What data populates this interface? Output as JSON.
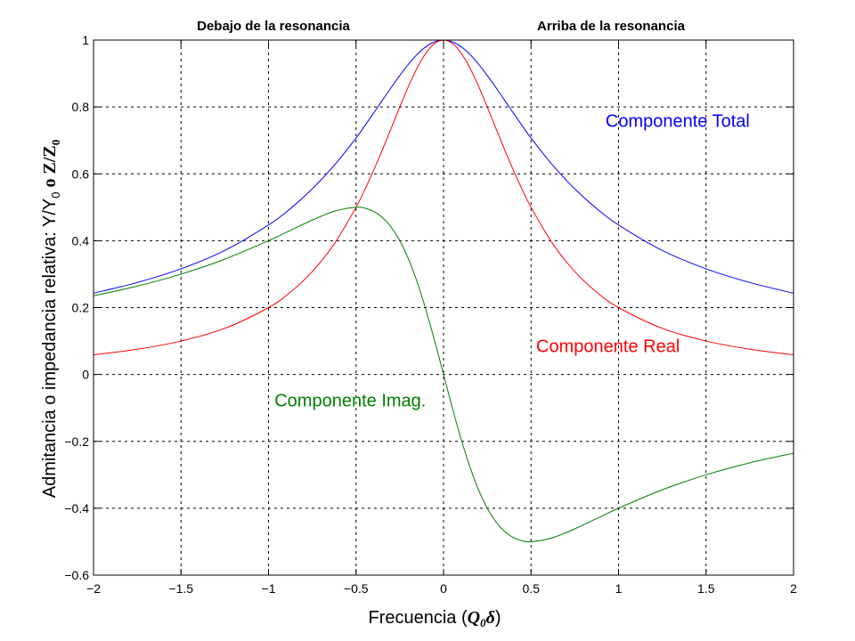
{
  "chart_data": {
    "type": "line",
    "xlim": [
      -2,
      2
    ],
    "ylim": [
      -0.6,
      1
    ],
    "xticks": [
      -2,
      -1.5,
      -1,
      -0.5,
      0,
      0.5,
      1,
      1.5,
      2
    ],
    "xtick_labels": [
      "−2",
      "−1.5",
      "−1",
      "−0.5",
      "0",
      "0.5",
      "1",
      "1.5",
      "2"
    ],
    "yticks": [
      -0.6,
      -0.4,
      -0.2,
      0,
      0.2,
      0.4,
      0.6,
      0.8,
      1
    ],
    "ytick_labels": [
      "−0.6",
      "−0.4",
      "−0.2",
      "0",
      "0.2",
      "0.4",
      "0.6",
      "0.8",
      "1"
    ],
    "grid": true,
    "grid_style": "dashed",
    "top_labels": {
      "left": "Debajo de la resonancia",
      "right": "Arriba de la resonancia"
    },
    "xlabel": {
      "prefix": "Frecuencia (",
      "symbol": "Q",
      "subscript": "0",
      "delta": "δ",
      "suffix": ")"
    },
    "ylabel": {
      "prefix": "Admitancia o impedancia relativa:  Y/Y",
      "sub1": "0",
      "middle": "  o  ",
      "z": "Z/Z",
      "sub2": "0"
    },
    "x": [
      -2,
      -1.75,
      -1.5,
      -1.25,
      -1,
      -0.875,
      -0.75,
      -0.625,
      -0.5,
      -0.4375,
      -0.375,
      -0.3125,
      -0.25,
      -0.1875,
      -0.125,
      -0.0625,
      0,
      0.0625,
      0.125,
      0.1875,
      0.25,
      0.3125,
      0.375,
      0.4375,
      0.5,
      0.625,
      0.75,
      0.875,
      1,
      1.25,
      1.5,
      1.75,
      2
    ],
    "series": [
      {
        "name": "Componente Total",
        "color": "#0000ff",
        "values": [
          0.243,
          0.275,
          0.316,
          0.371,
          0.447,
          0.496,
          0.555,
          0.625,
          0.707,
          0.753,
          0.8,
          0.848,
          0.894,
          0.936,
          0.97,
          0.992,
          1.0,
          0.992,
          0.97,
          0.936,
          0.894,
          0.848,
          0.8,
          0.753,
          0.707,
          0.625,
          0.555,
          0.496,
          0.447,
          0.371,
          0.316,
          0.275,
          0.243
        ]
      },
      {
        "name": "Componente Real",
        "color": "#ff0000",
        "values": [
          0.0588,
          0.0755,
          0.1,
          0.1379,
          0.2,
          0.2462,
          0.3077,
          0.3902,
          0.5,
          0.5664,
          0.64,
          0.719,
          0.8,
          0.8767,
          0.9412,
          0.9846,
          1.0,
          0.9846,
          0.9412,
          0.8767,
          0.8,
          0.719,
          0.64,
          0.5664,
          0.5,
          0.3902,
          0.3077,
          0.2462,
          0.2,
          0.1379,
          0.1,
          0.0755,
          0.0588
        ]
      },
      {
        "name": "Componente Imag.",
        "color": "#007f00",
        "values": [
          0.2353,
          0.2642,
          0.3,
          0.3448,
          0.4,
          0.4308,
          0.4615,
          0.4878,
          0.5,
          0.4956,
          0.48,
          0.4494,
          0.4,
          0.3288,
          0.2353,
          0.1231,
          0,
          -0.1231,
          -0.2353,
          -0.3288,
          -0.4,
          -0.4494,
          -0.48,
          -0.4956,
          -0.5,
          -0.4878,
          -0.4615,
          -0.4308,
          -0.4,
          -0.3448,
          -0.3,
          -0.2642,
          -0.2353
        ]
      }
    ],
    "annotations": [
      {
        "text": "Componente Total",
        "x": 1.75,
        "y": 0.74,
        "color": "#0000ff",
        "anchor": "end"
      },
      {
        "text": "Componente Real",
        "x": 1.35,
        "y": 0.067,
        "color": "#ff0000",
        "anchor": "end"
      },
      {
        "text": "Componente Imag.",
        "x": -0.1,
        "y": -0.095,
        "color": "#007f00",
        "anchor": "end"
      }
    ]
  }
}
